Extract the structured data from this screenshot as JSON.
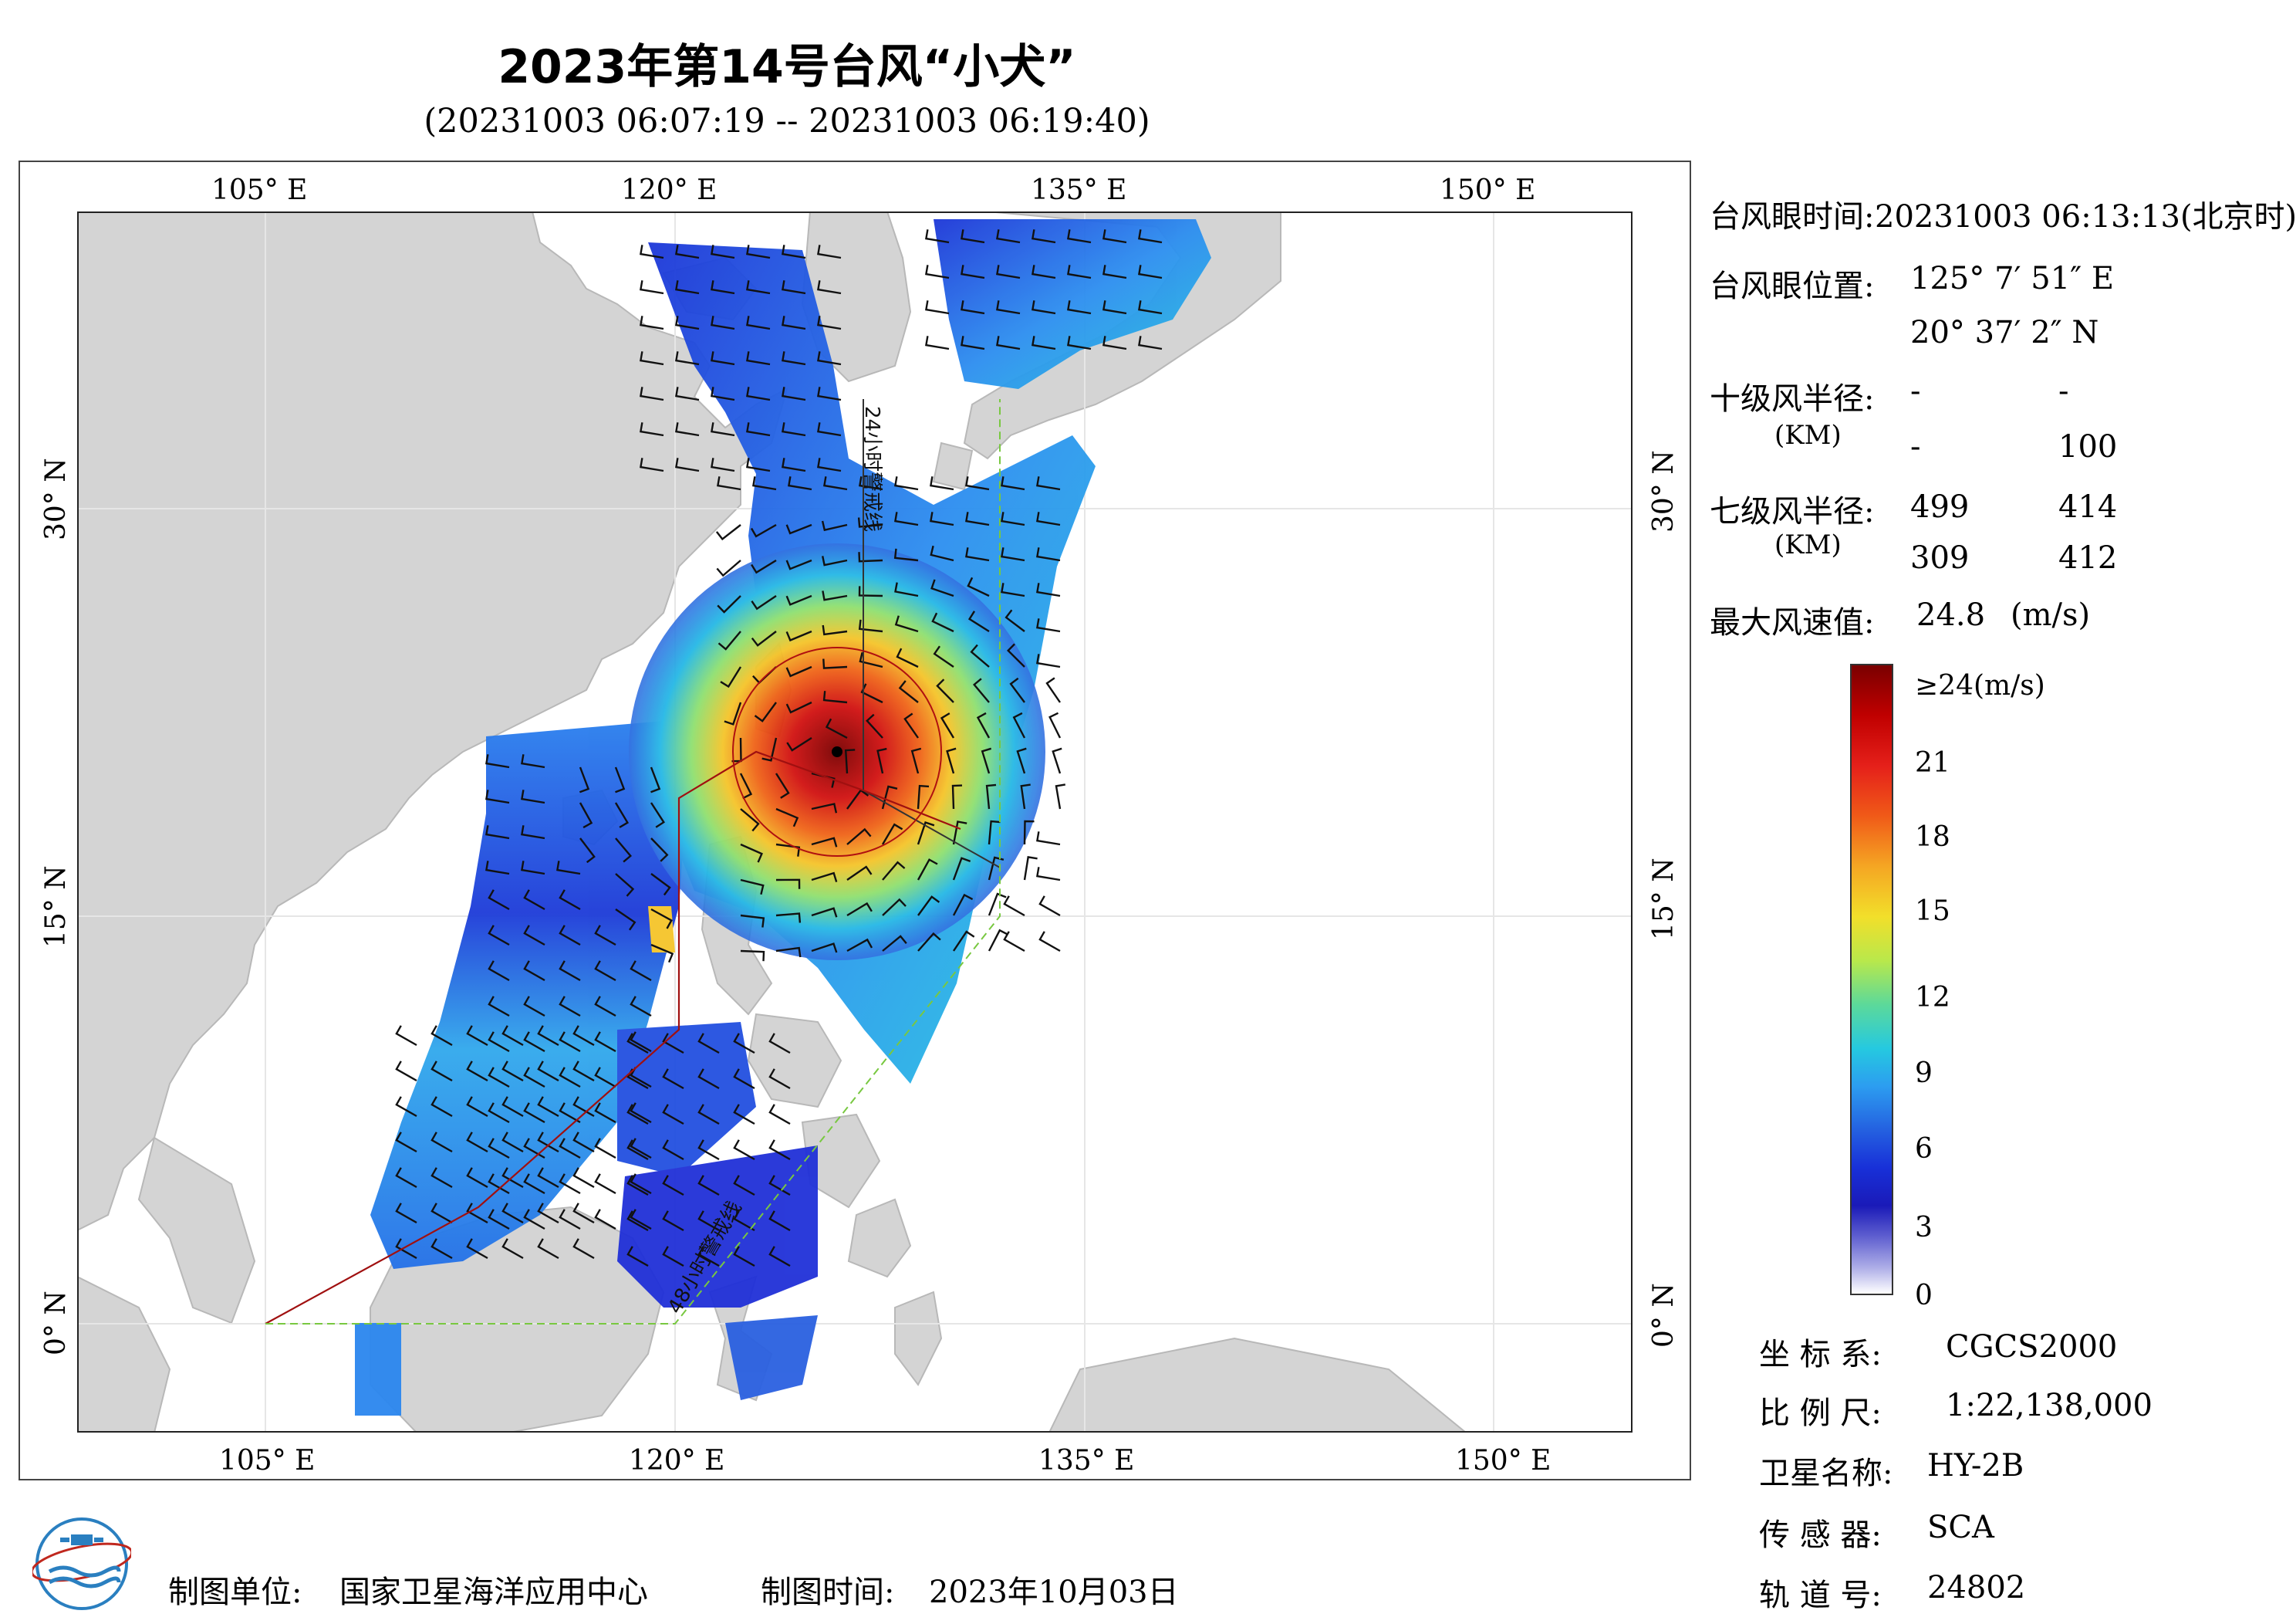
{
  "title": "2023年第14号台风“小犬”",
  "subtitle": "(20231003 06:07:19 -- 20231003 06:19:40)",
  "map": {
    "lon_ticks": [
      "105° E",
      "120° E",
      "135° E",
      "150° E"
    ],
    "lat_ticks": [
      "30° N",
      "15° N",
      "0° N"
    ],
    "track_label_24h": "24小时警戒线",
    "track_label_48h": "48小时警戒线",
    "extent": {
      "lon": [
        98,
        155
      ],
      "lat": [
        -4,
        41
      ]
    },
    "eye": {
      "lon": 125.13,
      "lat": 20.62
    }
  },
  "info": {
    "eye_time_label": "台风眼时间:",
    "eye_time_value": "20231003 06:13:13(北京时)",
    "eye_pos_label": "台风眼位置:",
    "eye_lon": "125° 7′ 51″ E",
    "eye_lat": "20° 37′ 2″ N",
    "r10_label": "十级风半径:",
    "r10_unit": "(KM)",
    "r10_values": [
      "-",
      "-",
      "-",
      "100"
    ],
    "r7_label": "七级风半径:",
    "r7_unit": "(KM)",
    "r7_values": [
      "499",
      "414",
      "309",
      "412"
    ],
    "max_wind_label": "最大风速值:",
    "max_wind_value": "24.8",
    "max_wind_unit": "(m/s)"
  },
  "colorbar": {
    "labels": [
      "≥24(m/s)",
      "21",
      "18",
      "15",
      "12",
      "9",
      "6",
      "3",
      "0"
    ]
  },
  "footer": {
    "coord_label": "坐 标 系:",
    "coord_value": "CGCS2000",
    "scale_label": "比 例 尺:",
    "scale_value": "1:22,138,000",
    "sat_label": "卫星名称:",
    "sat_value": "HY-2B",
    "sensor_label": "传 感 器:",
    "sensor_value": "SCA",
    "orbit_label": "轨 道 号:",
    "orbit_value": "24802",
    "maker_label": "制图单位:",
    "maker_value": "国家卫星海洋应用中心",
    "date_label": "制图时间:",
    "date_value": "2023年10月03日"
  }
}
